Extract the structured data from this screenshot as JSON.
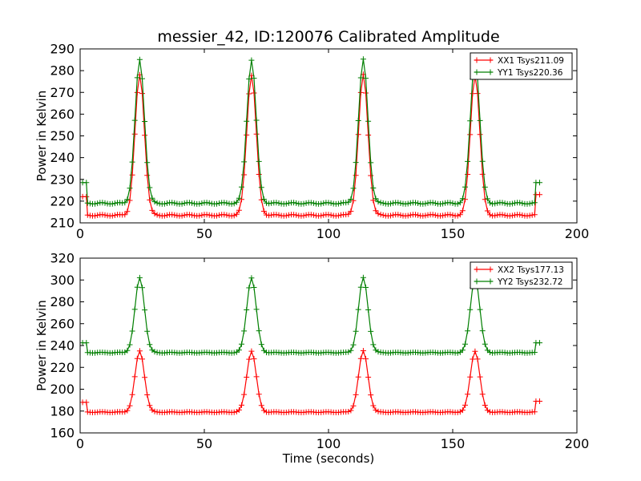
{
  "title": "messier_42, ID:120076 Calibrated Amplitude",
  "colors": {
    "xx": "#ff0000",
    "yy": "#007f00"
  },
  "chart_data": [
    {
      "type": "line",
      "ylabel": "Power in Kelvin",
      "xlabel": "",
      "xlim": [
        0,
        200
      ],
      "ylim": [
        210,
        290
      ],
      "xticks": [
        0,
        50,
        100,
        150,
        200
      ],
      "yticks": [
        210,
        220,
        230,
        240,
        250,
        260,
        270,
        280,
        290
      ],
      "legend_position": "top-right",
      "series": [
        {
          "name": "XX1 Tsys211.09",
          "color": "#ff0000",
          "marker": "+",
          "baseline": 213.5,
          "peak": 278,
          "start_value": 222,
          "end_value": 223,
          "peaks_x": [
            24,
            69,
            114,
            159
          ],
          "x_range": [
            1,
            185
          ]
        },
        {
          "name": "YY1 Tsys220.36",
          "color": "#007f00",
          "marker": "+",
          "baseline": 219,
          "peak": 285,
          "start_value": 228.5,
          "end_value": 228.5,
          "peaks_x": [
            24,
            69,
            114,
            159
          ],
          "x_range": [
            1,
            185
          ]
        }
      ]
    },
    {
      "type": "line",
      "ylabel": "Power in Kelvin",
      "xlabel": "Time (seconds)",
      "xlim": [
        0,
        200
      ],
      "ylim": [
        160,
        320
      ],
      "xticks": [
        0,
        50,
        100,
        150,
        200
      ],
      "yticks": [
        160,
        180,
        200,
        220,
        240,
        260,
        280,
        300,
        320
      ],
      "legend_position": "top-right",
      "series": [
        {
          "name": "XX2 Tsys177.13",
          "color": "#ff0000",
          "marker": "+",
          "baseline": 179,
          "peak": 235,
          "start_value": 188,
          "end_value": 189,
          "peaks_x": [
            24,
            69,
            114,
            159
          ],
          "x_range": [
            1,
            185
          ]
        },
        {
          "name": "YY2 Tsys232.72",
          "color": "#007f00",
          "marker": "+",
          "baseline": 233.5,
          "peak": 302,
          "start_value": 242.5,
          "end_value": 242.5,
          "peaks_x": [
            24,
            69,
            114,
            159
          ],
          "x_range": [
            1,
            185
          ]
        }
      ]
    }
  ]
}
